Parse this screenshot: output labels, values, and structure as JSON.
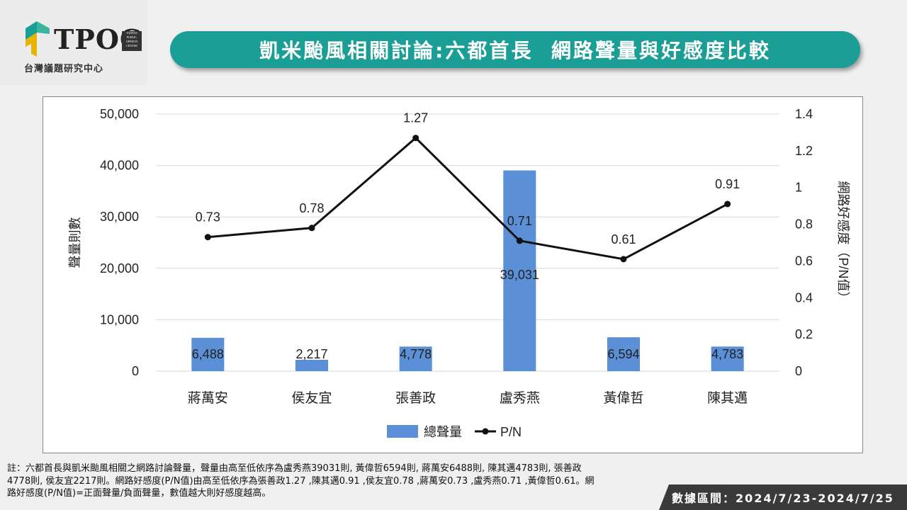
{
  "header": {
    "logo_text": "TPOC",
    "logo_seal_text": "TAIWAN PUBLIC OPINION CENTER",
    "logo_subtitle": "台灣議題研究中心",
    "title": "凱米颱風相關討論:六都首長  網路聲量與好感度比較"
  },
  "chart_data": {
    "type": "bar+line",
    "categories": [
      "蔣萬安",
      "侯友宜",
      "張善政",
      "盧秀燕",
      "黃偉哲",
      "陳其邁"
    ],
    "series": [
      {
        "name": "總聲量",
        "type": "bar",
        "axis": "left",
        "values": [
          6488,
          2217,
          4778,
          39031,
          6594,
          4783
        ],
        "labels": [
          "6,488",
          "2,217",
          "4,778",
          "39,031",
          "6,594",
          "4,783"
        ],
        "color": "#5b8fd6"
      },
      {
        "name": "P/N",
        "type": "line",
        "axis": "right",
        "values": [
          0.73,
          0.78,
          1.27,
          0.71,
          0.61,
          0.91
        ],
        "labels": [
          "0.73",
          "0.78",
          "1.27",
          "0.71",
          "0.61",
          "0.91"
        ],
        "color": "#111111"
      }
    ],
    "ylabel": "聲量則數",
    "y2label": "網路好感度（P/N值）",
    "ylim": [
      0,
      50000
    ],
    "y2lim": [
      0,
      1.4
    ],
    "yticks": [
      "0",
      "10,000",
      "20,000",
      "30,000",
      "40,000",
      "50,000"
    ],
    "y2ticks": [
      "0",
      "0.2",
      "0.4",
      "0.6",
      "0.8",
      "1",
      "1.2",
      "1.4"
    ],
    "grid": true,
    "legend": "bottom"
  },
  "footer": {
    "note": "註：六都首長與凱米颱風相關之網路討論聲量，聲量由高至低依序為盧秀燕39031則, 黃偉哲6594則, 蔣萬安6488則, 陳其邁4783則, 張善政4778則, 侯友宜2217則。網路好感度(P/N值)由高至低依序為張善政1.27 ,陳其邁0.91 ,侯友宜0.78 ,蔣萬安0.73 ,盧秀燕0.71 ,黃偉哲0.61。網路好感度(P/N值)=正面聲量/負面聲量，數值越大則好感度越高。",
    "date_range": "數據區間：2024/7/23-2024/7/25"
  },
  "colors": {
    "title_bg": "#1a9e95",
    "bar": "#5b8fd6",
    "line": "#111111"
  }
}
